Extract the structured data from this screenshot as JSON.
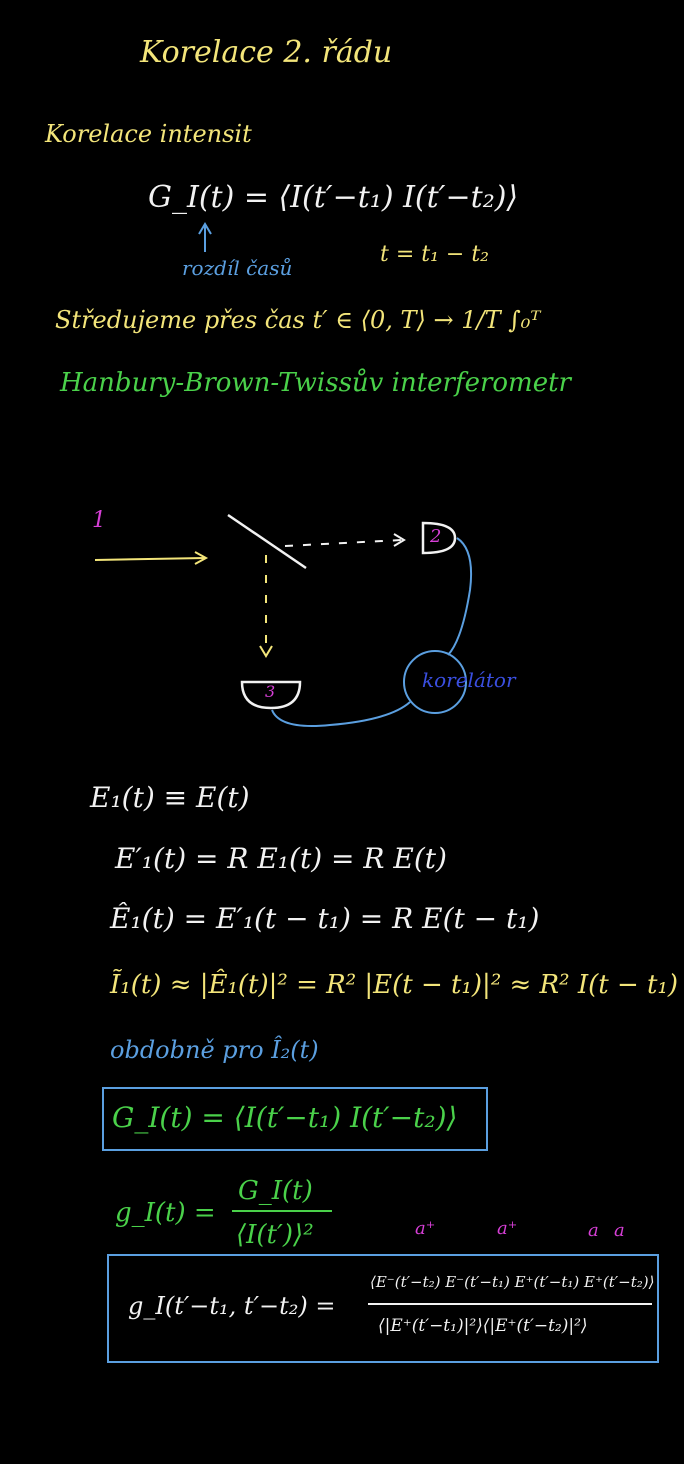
{
  "title": "Korelace 2. řádu",
  "intensity": {
    "heading": "Korelace intensit",
    "definition": "G_I(t) = ⟨I(t′−t₁) I(t′−t₂)⟩",
    "note": "rozdíl časů",
    "time": "t = t₁ − t₂"
  },
  "averaging": "Středujeme přes čas t′ ∈ ⟨0, T⟩ → 1/T ∫₀ᵀ",
  "interferometer": {
    "heading": "Hanbury-Brown-Twissův interferometr",
    "labels": {
      "input": "1",
      "detector_2": "2",
      "detector_3": "3",
      "correlator": "korelátor"
    }
  },
  "equations": [
    "E₁(t) ≡ E(t)",
    "E′₁(t) = R E₁(t) = R E(t)",
    "Ê₁(t) = E′₁(t − t₁) = R E(t − t₁)",
    "Ĩ₁(t) ≈ |Ê₁(t)|² = R² |E(t − t₁)|² ≈ R² I(t − t₁)"
  ],
  "similarly": "obdobně pro Î₂(t)",
  "boxed_G": "G_I(t) = ⟨I(t′−t₁) I(t′−t₂)⟩",
  "g_definition": {
    "lhs": "g_I(t) =",
    "numerator": "G_I(t)",
    "denominator": "⟨I(t′)⟩²"
  },
  "operators": [
    "a⁺",
    "a⁺",
    "a",
    "a"
  ],
  "boxed_g": {
    "lhs": "g_I(t′−t₁, t′−t₂) =",
    "numerator": "⟨E⁻(t′−t₂) E⁻(t′−t₁) E⁺(t′−t₁) E⁺(t′−t₂)⟩",
    "denominator": "⟨|E⁺(t′−t₁)|²⟩⟨|E⁺(t′−t₂)|²⟩"
  }
}
